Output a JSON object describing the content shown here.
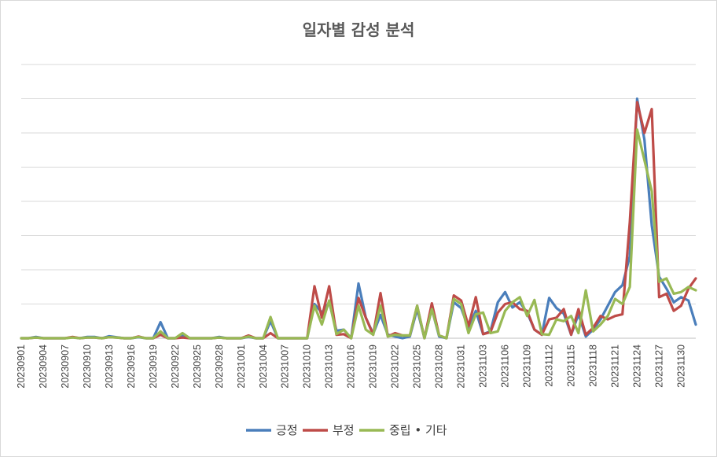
{
  "chart_data": {
    "type": "line",
    "title": "일자별 감성 분석",
    "xlabel": "",
    "ylabel": "",
    "grid": true,
    "legend_position": "bottom",
    "ylim": [
      0,
      8
    ],
    "x": [
      "20230901",
      "20230902",
      "20230903",
      "20230904",
      "20230905",
      "20230906",
      "20230907",
      "20230908",
      "20230909",
      "20230910",
      "20230911",
      "20230912",
      "20230913",
      "20230914",
      "20230915",
      "20230916",
      "20230917",
      "20230918",
      "20230919",
      "20230920",
      "20230921",
      "20230922",
      "20230923",
      "20230924",
      "20230925",
      "20230926",
      "20230927",
      "20230928",
      "20230929",
      "20230930",
      "20231001",
      "20231002",
      "20231003",
      "20231004",
      "20231005",
      "20231006",
      "20231007",
      "20231008",
      "20231009",
      "20231010",
      "20231011",
      "20231012",
      "20231013",
      "20231014",
      "20231015",
      "20231016",
      "20231017",
      "20231018",
      "20231019",
      "20231020",
      "20231021",
      "20231022",
      "20231023",
      "20231024",
      "20231025",
      "20231026",
      "20231027",
      "20231028",
      "20231029",
      "20231030",
      "20231031",
      "20231101",
      "20231102",
      "20231103",
      "20231104",
      "20231105",
      "20231106",
      "20231107",
      "20231108",
      "20231109",
      "20231110",
      "20231111",
      "20231112",
      "20231113",
      "20231114",
      "20231115",
      "20231116",
      "20231117",
      "20231118",
      "20231119",
      "20231120",
      "20231121",
      "20231122",
      "20231123",
      "20231124",
      "20231125",
      "20231126",
      "20231127",
      "20231128",
      "20231129",
      "20231130",
      "20231201",
      "20231202"
    ],
    "x_tick_labels": [
      "20230901",
      "20230904",
      "20230907",
      "20230910",
      "20230913",
      "20230916",
      "20230919",
      "20230922",
      "20230925",
      "20230928",
      "20231001",
      "20231004",
      "20231007",
      "20231010",
      "20231013",
      "20231016",
      "20231019",
      "20231022",
      "20231025",
      "20231028",
      "20231031",
      "20231103",
      "20231106",
      "20231109",
      "20231112",
      "20231115",
      "20231118",
      "20231121",
      "20231124",
      "20231127",
      "20231130"
    ],
    "series": [
      {
        "name": "긍정",
        "color": "#4a7ebb",
        "values": [
          0,
          0,
          0.04,
          0,
          0,
          0,
          0,
          0.03,
          0,
          0.04,
          0.04,
          0,
          0.06,
          0.03,
          0,
          0,
          0.03,
          0,
          0,
          0.47,
          0,
          0,
          0.08,
          0,
          0,
          0,
          0,
          0.04,
          0,
          0,
          0,
          0.04,
          0,
          0,
          0.5,
          0,
          0,
          0,
          0,
          0,
          1.0,
          0.75,
          1.05,
          0.22,
          0.25,
          0,
          1.6,
          0.6,
          0.13,
          0.68,
          0.1,
          0.05,
          0,
          0.05,
          0.85,
          0,
          0.85,
          0.05,
          0,
          1.05,
          0.88,
          0.3,
          0.8,
          0.12,
          0.2,
          1.05,
          1.35,
          0.9,
          1.05,
          0.75,
          0.25,
          0.1,
          1.18,
          0.88,
          0.72,
          0.1,
          0.7,
          0.05,
          0.25,
          0.55,
          0.95,
          1.35,
          1.55,
          2.4,
          7.0,
          5.8,
          3.3,
          1.8,
          1.45,
          1.05,
          1.2,
          1.1,
          0.4
        ]
      },
      {
        "name": "부정",
        "color": "#be4b48",
        "values": [
          0,
          0,
          0.02,
          0,
          0,
          0,
          0,
          0.04,
          0,
          0.02,
          0.02,
          0,
          0.03,
          0.02,
          0,
          0,
          0.05,
          0,
          0,
          0.1,
          0,
          0,
          0.02,
          0,
          0,
          0,
          0,
          0.02,
          0,
          0,
          0,
          0.08,
          0,
          0,
          0.15,
          0,
          0,
          0,
          0,
          0,
          1.52,
          0.6,
          1.52,
          0.1,
          0.12,
          0,
          1.18,
          0.6,
          0.1,
          1.32,
          0.05,
          0.15,
          0.08,
          0.08,
          0.95,
          0,
          1.02,
          0.08,
          0,
          1.25,
          1.1,
          0.35,
          1.2,
          0.12,
          0.18,
          0.75,
          1.0,
          1.05,
          0.85,
          0.8,
          0.25,
          0.1,
          0.55,
          0.6,
          0.85,
          0.1,
          0.85,
          0.1,
          0.3,
          0.65,
          0.55,
          0.65,
          0.7,
          3.4,
          6.9,
          6.0,
          6.7,
          1.2,
          1.3,
          0.8,
          0.95,
          1.45,
          1.75
        ]
      },
      {
        "name": "중립·기타",
        "color": "#98b954",
        "values": [
          0,
          0,
          0.02,
          0,
          0,
          0,
          0,
          0.02,
          0,
          0.02,
          0.02,
          0,
          0.03,
          0.02,
          0,
          0,
          0.04,
          0,
          0,
          0.2,
          0,
          0,
          0.15,
          0,
          0,
          0,
          0,
          0.02,
          0,
          0,
          0,
          0.05,
          0,
          0,
          0.62,
          0,
          0,
          0,
          0,
          0,
          0.95,
          0.4,
          1.1,
          0.12,
          0.25,
          0,
          0.95,
          0.25,
          0.1,
          0.95,
          0.05,
          0.1,
          0.08,
          0.08,
          0.95,
          0,
          0.85,
          0.08,
          0,
          1.15,
          1.0,
          0.15,
          0.7,
          0.75,
          0.15,
          0.2,
          0.8,
          1.05,
          1.2,
          0.65,
          1.12,
          0.12,
          0.1,
          0.55,
          0.5,
          0.65,
          0.15,
          1.4,
          0.2,
          0.4,
          0.65,
          1.15,
          1.0,
          1.5,
          6.1,
          5.2,
          4.3,
          1.65,
          1.75,
          1.3,
          1.35,
          1.5,
          1.4
        ]
      }
    ],
    "legend": [
      {
        "label": "긍정",
        "color": "#4a7ebb"
      },
      {
        "label": "부정",
        "color": "#be4b48"
      },
      {
        "label": "중립 • 기타",
        "color": "#98b954"
      }
    ]
  }
}
